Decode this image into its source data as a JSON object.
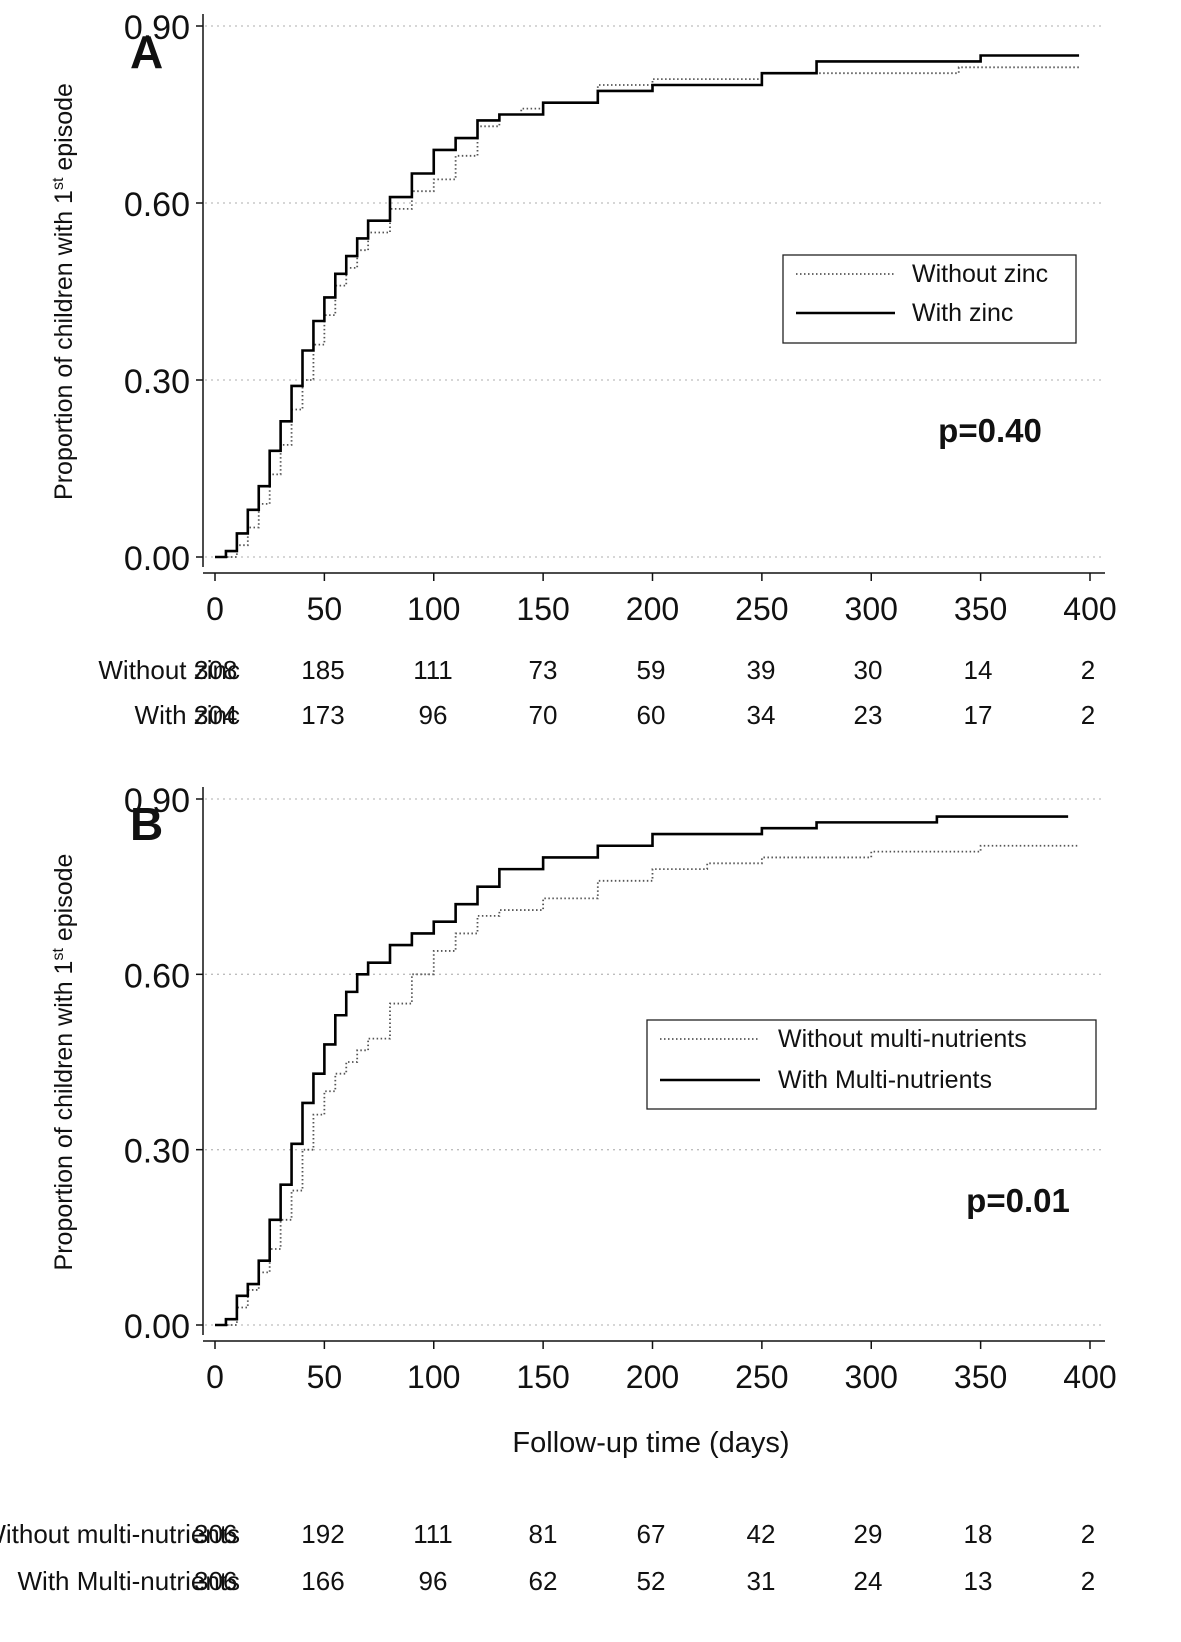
{
  "chart_data": [
    {
      "type": "line",
      "panel_label": "A",
      "ylabel_main": "Proportion of children with 1",
      "ylabel_sup": "st",
      "ylabel_tail": " episode",
      "xlabel": "",
      "xlim": [
        0,
        400
      ],
      "ylim": [
        0,
        0.9
      ],
      "xticks": [
        "0",
        "50",
        "100",
        "150",
        "200",
        "250",
        "300",
        "350",
        "400"
      ],
      "yticks": [
        "0.00",
        "0.30",
        "0.60",
        "0.90"
      ],
      "grid": "horizontal dotted",
      "legend_position": "right, middle",
      "annotation": "p=0.40",
      "series": [
        {
          "name": "Without zinc",
          "style": "dotted",
          "color": "#555555",
          "points": [
            [
              0,
              0
            ],
            [
              5,
              0
            ],
            [
              10,
              0.02
            ],
            [
              15,
              0.05
            ],
            [
              20,
              0.09
            ],
            [
              25,
              0.14
            ],
            [
              30,
              0.19
            ],
            [
              35,
              0.25
            ],
            [
              40,
              0.3
            ],
            [
              45,
              0.36
            ],
            [
              50,
              0.41
            ],
            [
              55,
              0.46
            ],
            [
              60,
              0.49
            ],
            [
              65,
              0.52
            ],
            [
              70,
              0.55
            ],
            [
              80,
              0.59
            ],
            [
              90,
              0.62
            ],
            [
              100,
              0.64
            ],
            [
              110,
              0.68
            ],
            [
              120,
              0.73
            ],
            [
              130,
              0.75
            ],
            [
              140,
              0.76
            ],
            [
              150,
              0.77
            ],
            [
              175,
              0.8
            ],
            [
              200,
              0.81
            ],
            [
              250,
              0.82
            ],
            [
              300,
              0.82
            ],
            [
              330,
              0.82
            ],
            [
              340,
              0.83
            ],
            [
              395,
              0.83
            ]
          ]
        },
        {
          "name": "With zinc",
          "style": "solid",
          "color": "#000000",
          "points": [
            [
              0,
              0
            ],
            [
              5,
              0.01
            ],
            [
              10,
              0.04
            ],
            [
              15,
              0.08
            ],
            [
              20,
              0.12
            ],
            [
              25,
              0.18
            ],
            [
              30,
              0.23
            ],
            [
              35,
              0.29
            ],
            [
              40,
              0.35
            ],
            [
              45,
              0.4
            ],
            [
              50,
              0.44
            ],
            [
              55,
              0.48
            ],
            [
              60,
              0.51
            ],
            [
              65,
              0.54
            ],
            [
              70,
              0.57
            ],
            [
              80,
              0.61
            ],
            [
              90,
              0.65
            ],
            [
              100,
              0.69
            ],
            [
              110,
              0.71
            ],
            [
              120,
              0.74
            ],
            [
              130,
              0.75
            ],
            [
              150,
              0.77
            ],
            [
              175,
              0.79
            ],
            [
              200,
              0.8
            ],
            [
              250,
              0.82
            ],
            [
              275,
              0.84
            ],
            [
              300,
              0.84
            ],
            [
              350,
              0.85
            ],
            [
              395,
              0.85
            ]
          ]
        }
      ],
      "at_risk": {
        "x": [
          0,
          50,
          100,
          150,
          200,
          250,
          300,
          350,
          400
        ],
        "rows": [
          {
            "label": "Without zinc",
            "values": [
              "308",
              "185",
              "111",
              "73",
              "59",
              "39",
              "30",
              "14",
              "2"
            ]
          },
          {
            "label": "With zinc",
            "values": [
              "304",
              "173",
              "96",
              "70",
              "60",
              "34",
              "23",
              "17",
              "2"
            ]
          }
        ]
      }
    },
    {
      "type": "line",
      "panel_label": "B",
      "ylabel_main": "Proportion of children with 1",
      "ylabel_sup": "st",
      "ylabel_tail": " episode",
      "xlabel": "Follow-up time  (days)",
      "xlim": [
        0,
        400
      ],
      "ylim": [
        0,
        0.9
      ],
      "xticks": [
        "0",
        "50",
        "100",
        "150",
        "200",
        "250",
        "300",
        "350",
        "400"
      ],
      "yticks": [
        "0.00",
        "0.30",
        "0.60",
        "0.90"
      ],
      "grid": "horizontal dotted",
      "legend_position": "right, middle",
      "annotation": "p=0.01",
      "series": [
        {
          "name": "Without multi-nutrients",
          "style": "dotted",
          "color": "#555555",
          "points": [
            [
              0,
              0
            ],
            [
              5,
              0
            ],
            [
              10,
              0.03
            ],
            [
              15,
              0.06
            ],
            [
              20,
              0.09
            ],
            [
              25,
              0.13
            ],
            [
              30,
              0.18
            ],
            [
              35,
              0.23
            ],
            [
              40,
              0.3
            ],
            [
              45,
              0.36
            ],
            [
              50,
              0.4
            ],
            [
              55,
              0.43
            ],
            [
              60,
              0.45
            ],
            [
              65,
              0.47
            ],
            [
              70,
              0.49
            ],
            [
              80,
              0.55
            ],
            [
              90,
              0.6
            ],
            [
              100,
              0.64
            ],
            [
              110,
              0.67
            ],
            [
              120,
              0.7
            ],
            [
              130,
              0.71
            ],
            [
              150,
              0.73
            ],
            [
              175,
              0.76
            ],
            [
              200,
              0.78
            ],
            [
              225,
              0.79
            ],
            [
              250,
              0.8
            ],
            [
              275,
              0.8
            ],
            [
              300,
              0.81
            ],
            [
              340,
              0.81
            ],
            [
              350,
              0.82
            ],
            [
              395,
              0.82
            ]
          ]
        },
        {
          "name": "With Multi-nutrients",
          "style": "solid",
          "color": "#000000",
          "points": [
            [
              0,
              0
            ],
            [
              5,
              0.01
            ],
            [
              10,
              0.05
            ],
            [
              15,
              0.07
            ],
            [
              20,
              0.11
            ],
            [
              25,
              0.18
            ],
            [
              30,
              0.24
            ],
            [
              35,
              0.31
            ],
            [
              40,
              0.38
            ],
            [
              45,
              0.43
            ],
            [
              50,
              0.48
            ],
            [
              55,
              0.53
            ],
            [
              60,
              0.57
            ],
            [
              65,
              0.6
            ],
            [
              70,
              0.62
            ],
            [
              80,
              0.65
            ],
            [
              90,
              0.67
            ],
            [
              100,
              0.69
            ],
            [
              110,
              0.72
            ],
            [
              120,
              0.75
            ],
            [
              130,
              0.78
            ],
            [
              150,
              0.8
            ],
            [
              175,
              0.82
            ],
            [
              200,
              0.84
            ],
            [
              250,
              0.85
            ],
            [
              275,
              0.86
            ],
            [
              300,
              0.86
            ],
            [
              330,
              0.87
            ],
            [
              390,
              0.87
            ]
          ]
        }
      ],
      "at_risk": {
        "x": [
          0,
          50,
          100,
          150,
          200,
          250,
          300,
          350,
          400
        ],
        "rows": [
          {
            "label": "Without multi-nutrients",
            "values": [
              "306",
              "192",
              "111",
              "81",
              "67",
              "42",
              "29",
              "18",
              "2"
            ]
          },
          {
            "label": "With Multi-nutrients",
            "values": [
              "306",
              "166",
              "96",
              "62",
              "52",
              "31",
              "24",
              "13",
              "2"
            ]
          }
        ]
      }
    }
  ]
}
